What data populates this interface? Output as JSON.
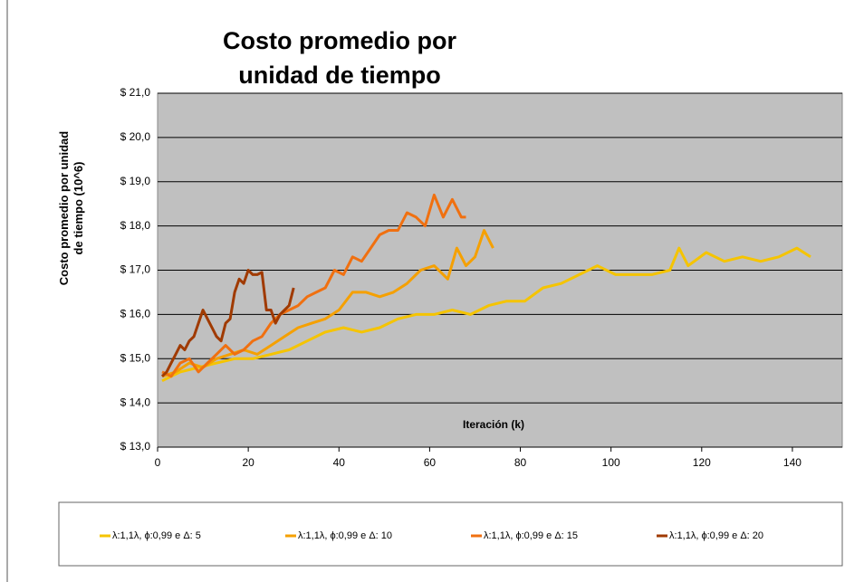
{
  "chart_data": {
    "type": "line",
    "title": "Costo promedio por unidad de tiempo",
    "ylabel": "Costo promedio por unidad de tiempo (10^6)",
    "xlabel": "Iteración (k)",
    "xlim": [
      0,
      151
    ],
    "xticks": [
      0,
      20,
      40,
      60,
      80,
      100,
      120,
      140
    ],
    "ylim": [
      13,
      21
    ],
    "yticks": [
      {
        "value": 13,
        "label": "$ 13,0"
      },
      {
        "value": 14,
        "label": "$ 14,0"
      },
      {
        "value": 15,
        "label": "$ 15,0"
      },
      {
        "value": 16,
        "label": "$ 16,0"
      },
      {
        "value": 17,
        "label": "$ 17,0"
      },
      {
        "value": 18,
        "label": "$ 18,0"
      },
      {
        "value": 19,
        "label": "$ 19,0"
      },
      {
        "value": 20,
        "label": "$ 20,0"
      },
      {
        "value": 21,
        "label": "$ 21,0"
      }
    ],
    "grid": true,
    "legend": "bottom",
    "series": [
      {
        "name": "λ:1,1λ, ϕ:0,99 e Δ: 5",
        "color": "#f5c400",
        "x": [
          1,
          5,
          9,
          13,
          17,
          21,
          25,
          29,
          33,
          37,
          41,
          45,
          49,
          53,
          57,
          61,
          65,
          69,
          73,
          77,
          81,
          85,
          89,
          93,
          97,
          101,
          105,
          109,
          113,
          115,
          117,
          121,
          125,
          129,
          133,
          137,
          141,
          144
        ],
        "values": [
          14.5,
          14.7,
          14.8,
          14.9,
          15.0,
          15.0,
          15.1,
          15.2,
          15.4,
          15.6,
          15.7,
          15.6,
          15.7,
          15.9,
          16.0,
          16.0,
          16.1,
          16.0,
          16.2,
          16.3,
          16.3,
          16.6,
          16.7,
          16.9,
          17.1,
          16.9,
          16.9,
          16.9,
          17.0,
          17.5,
          17.1,
          17.4,
          17.2,
          17.3,
          17.2,
          17.3,
          17.5,
          17.3
        ]
      },
      {
        "name": "λ:1,1λ, ϕ:0,99 e Δ: 10",
        "color": "#f5a000",
        "x": [
          1,
          4,
          7,
          10,
          13,
          16,
          19,
          22,
          25,
          28,
          31,
          34,
          37,
          40,
          43,
          46,
          49,
          52,
          55,
          58,
          61,
          64,
          66,
          68,
          70,
          72,
          74
        ],
        "values": [
          14.6,
          14.7,
          14.9,
          14.8,
          15.0,
          15.1,
          15.2,
          15.1,
          15.3,
          15.5,
          15.7,
          15.8,
          15.9,
          16.1,
          16.5,
          16.5,
          16.4,
          16.5,
          16.7,
          17.0,
          17.1,
          16.8,
          17.5,
          17.1,
          17.3,
          17.9,
          17.5
        ]
      },
      {
        "name": "λ:1,1λ, ϕ:0,99 e Δ: 15",
        "color": "#f07010",
        "x": [
          1,
          3,
          5,
          7,
          9,
          11,
          13,
          15,
          17,
          19,
          21,
          23,
          25,
          27,
          29,
          31,
          33,
          35,
          37,
          39,
          41,
          43,
          45,
          47,
          49,
          51,
          53,
          55,
          57,
          59,
          61,
          63,
          65,
          67,
          68
        ],
        "values": [
          14.7,
          14.6,
          14.9,
          15.0,
          14.7,
          14.9,
          15.1,
          15.3,
          15.1,
          15.2,
          15.4,
          15.5,
          15.8,
          16.0,
          16.1,
          16.2,
          16.4,
          16.5,
          16.6,
          17.0,
          16.9,
          17.3,
          17.2,
          17.5,
          17.8,
          17.9,
          17.9,
          18.3,
          18.2,
          18.0,
          18.7,
          18.2,
          18.6,
          18.2,
          18.2
        ]
      },
      {
        "name": "λ:1,1λ, ϕ:0,99 e Δ: 20",
        "color": "#a03a00",
        "x": [
          1,
          2,
          3,
          4,
          5,
          6,
          7,
          8,
          9,
          10,
          11,
          12,
          13,
          14,
          15,
          16,
          17,
          18,
          19,
          20,
          21,
          22,
          23,
          24,
          25,
          26,
          27,
          28,
          29,
          30
        ],
        "values": [
          14.6,
          14.7,
          14.9,
          15.1,
          15.3,
          15.2,
          15.4,
          15.5,
          15.8,
          16.1,
          15.9,
          15.7,
          15.5,
          15.4,
          15.8,
          15.9,
          16.5,
          16.8,
          16.7,
          17.0,
          16.9,
          16.9,
          16.95,
          16.1,
          16.1,
          15.8,
          16.0,
          16.1,
          16.2,
          16.6
        ]
      }
    ]
  }
}
